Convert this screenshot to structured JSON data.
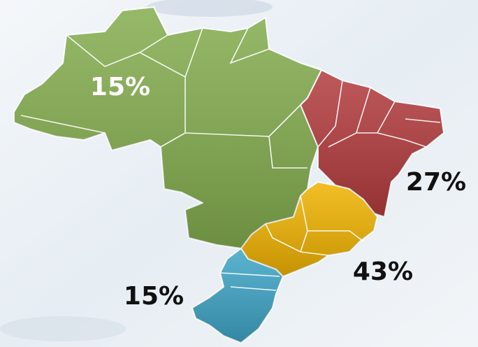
{
  "regions": [
    {
      "label": "15%",
      "color": "#84ad4e"
    },
    {
      "label": "27%",
      "color": "#b33b3e"
    },
    {
      "label": "43%",
      "color": "#f0b300"
    },
    {
      "label": "15%",
      "color": "#3ea5c6"
    }
  ]
}
